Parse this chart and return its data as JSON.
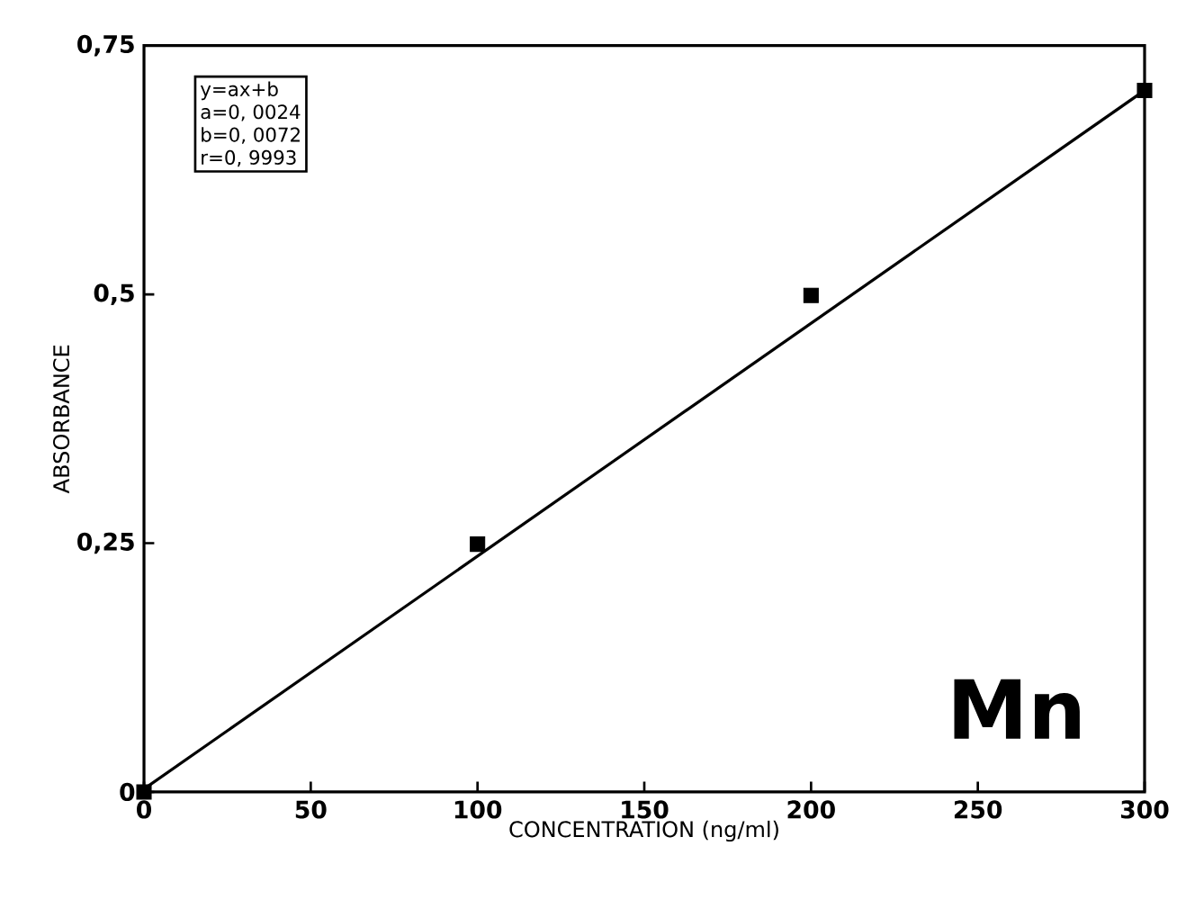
{
  "chart_data": {
    "type": "scatter",
    "xlabel": "CONCENTRATION (ng/ml)",
    "ylabel": "ABSORBANCE",
    "xlim": [
      0,
      300
    ],
    "xticks": [
      0,
      50,
      100,
      150,
      200,
      250,
      300
    ],
    "ylim": [
      0,
      0.75
    ],
    "yticks": [
      {
        "value": 0,
        "label": "0"
      },
      {
        "value": 0.25,
        "label": "0,25"
      },
      {
        "value": 0.5,
        "label": "0,5"
      },
      {
        "value": 0.75,
        "label": "0,75"
      }
    ],
    "grid": false,
    "series": [
      {
        "color": "#000000",
        "marker": "square",
        "x": [
          0,
          100,
          200,
          300
        ],
        "values": [
          0,
          0.249,
          0.499,
          0.705
        ]
      },
      {
        "type": "line",
        "marker": "none",
        "color": "#000000",
        "x": [
          0,
          300
        ],
        "values": [
          0.003,
          0.705
        ]
      }
    ],
    "annotations": [
      "y=ax+b",
      "a=0, 0024",
      "b=0, 0072",
      "r=0, 9993",
      "Mn"
    ]
  }
}
